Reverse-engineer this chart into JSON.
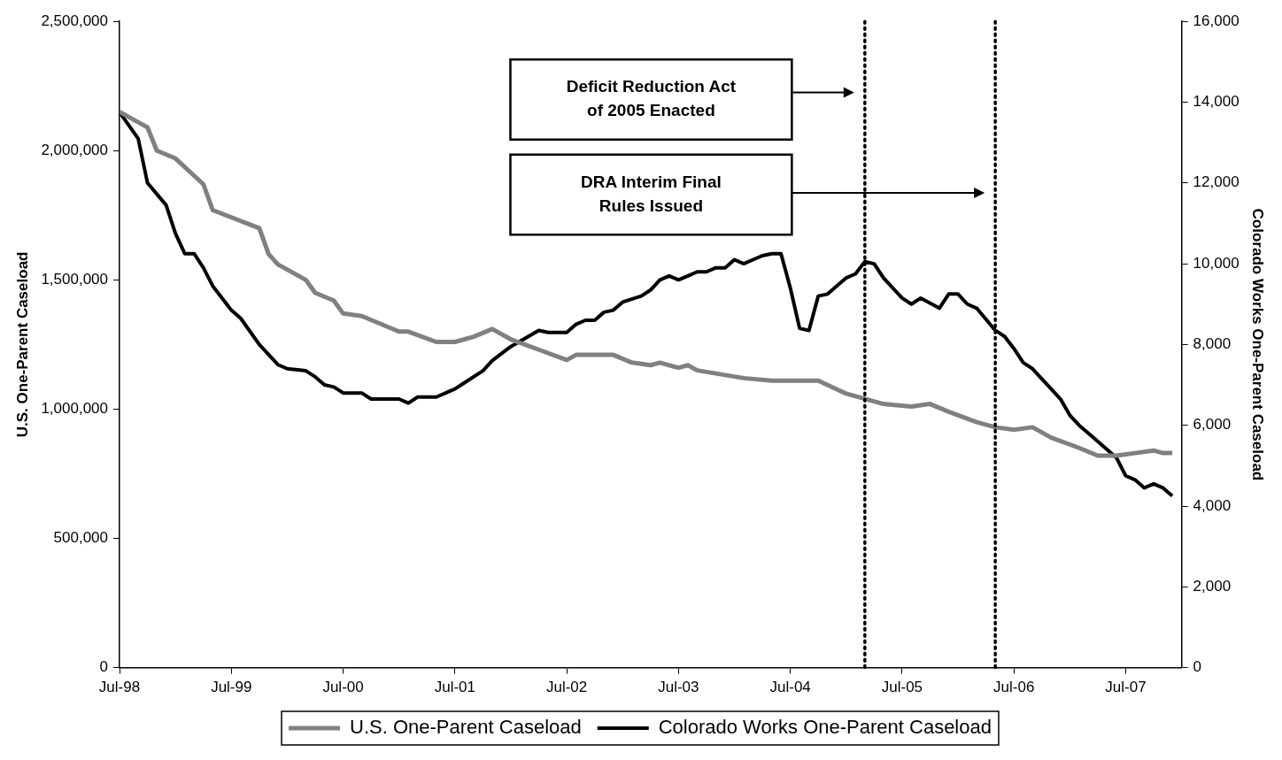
{
  "chart_data": {
    "type": "line",
    "ylabel": "U.S. One-Parent Caseload",
    "y2label": "Colorado Works One-Parent Caseload",
    "xlim": [
      "1998-07",
      "2008-01"
    ],
    "xticks": [
      {
        "value": "1998-07",
        "label": "Jul-98"
      },
      {
        "value": "1999-07",
        "label": "Jul-99"
      },
      {
        "value": "2000-07",
        "label": "Jul-00"
      },
      {
        "value": "2001-07",
        "label": "Jul-01"
      },
      {
        "value": "2002-07",
        "label": "Jul-02"
      },
      {
        "value": "2003-07",
        "label": "Jul-03"
      },
      {
        "value": "2004-07",
        "label": "Jul-04"
      },
      {
        "value": "2005-07",
        "label": "Jul-05"
      },
      {
        "value": "2006-07",
        "label": "Jul-06"
      },
      {
        "value": "2007-07",
        "label": "Jul-07"
      }
    ],
    "ylim": [
      0,
      2500000
    ],
    "yticks": [
      {
        "value": 0,
        "label": "0"
      },
      {
        "value": 500000,
        "label": "500,000"
      },
      {
        "value": 1000000,
        "label": "1,000,000"
      },
      {
        "value": 1500000,
        "label": "1,500,000"
      },
      {
        "value": 2000000,
        "label": "2,000,000"
      },
      {
        "value": 2500000,
        "label": "2,500,000"
      }
    ],
    "y2lim": [
      0,
      16000
    ],
    "y2ticks": [
      {
        "value": 0,
        "label": "0"
      },
      {
        "value": 2000,
        "label": "2,000"
      },
      {
        "value": 4000,
        "label": "4,000"
      },
      {
        "value": 6000,
        "label": "6,000"
      },
      {
        "value": 8000,
        "label": "8,000"
      },
      {
        "value": 10000,
        "label": "10,000"
      },
      {
        "value": 12000,
        "label": "12,000"
      },
      {
        "value": 14000,
        "label": "14,000"
      },
      {
        "value": 16000,
        "label": "16,000"
      }
    ],
    "series": [
      {
        "name": "U.S. One-Parent Caseload",
        "color": "#808080",
        "x": [
          "1998-07",
          "1998-09",
          "1998-10",
          "1998-11",
          "1999-01",
          "1999-04",
          "1999-05",
          "1999-10",
          "1999-11",
          "1999-12",
          "2000-03",
          "2000-04",
          "2000-06",
          "2000-07",
          "2000-09",
          "2001-01",
          "2001-02",
          "2001-05",
          "2001-07",
          "2001-09",
          "2001-11",
          "2002-01",
          "2002-04",
          "2002-07",
          "2002-08",
          "2002-12",
          "2003-02",
          "2003-04",
          "2003-05",
          "2003-07",
          "2003-08",
          "2003-09",
          "2004-02",
          "2004-05",
          "2004-08",
          "2004-10",
          "2005-01",
          "2005-05",
          "2005-08",
          "2005-10",
          "2005-12",
          "2006-03",
          "2006-05",
          "2006-07",
          "2006-09",
          "2006-11",
          "2007-02",
          "2007-04",
          "2007-06",
          "2007-08",
          "2007-10",
          "2007-11",
          "2007-12"
        ],
        "values": [
          2150000,
          2110000,
          2090000,
          2000000,
          1970000,
          1870000,
          1770000,
          1700000,
          1600000,
          1560000,
          1500000,
          1450000,
          1420000,
          1370000,
          1360000,
          1300000,
          1300000,
          1260000,
          1260000,
          1280000,
          1310000,
          1270000,
          1230000,
          1190000,
          1210000,
          1210000,
          1180000,
          1170000,
          1180000,
          1160000,
          1170000,
          1150000,
          1120000,
          1110000,
          1110000,
          1110000,
          1060000,
          1020000,
          1010000,
          1020000,
          990000,
          950000,
          930000,
          920000,
          930000,
          890000,
          850000,
          820000,
          820000,
          830000,
          840000,
          830000,
          830000
        ]
      },
      {
        "name": "Colorado Works One-Parent Caseload",
        "color": "#000000",
        "axis": "y2",
        "x": [
          "1998-07",
          "1998-09",
          "1998-10",
          "1998-12",
          "1999-01",
          "1999-02",
          "1999-03",
          "1999-04",
          "1999-05",
          "1999-07",
          "1999-08",
          "1999-10",
          "1999-12",
          "2000-01",
          "2000-03",
          "2000-04",
          "2000-05",
          "2000-06",
          "2000-07",
          "2000-09",
          "2000-10",
          "2001-01",
          "2001-02",
          "2001-03",
          "2001-05",
          "2001-07",
          "2001-08",
          "2001-10",
          "2001-11",
          "2002-01",
          "2002-04",
          "2002-05",
          "2002-07",
          "2002-08",
          "2002-09",
          "2002-10",
          "2002-11",
          "2002-12",
          "2003-01",
          "2003-03",
          "2003-04",
          "2003-05",
          "2003-06",
          "2003-07",
          "2003-08",
          "2003-09",
          "2003-10",
          "2003-11",
          "2003-12",
          "2004-01",
          "2004-02",
          "2004-03",
          "2004-04",
          "2004-05",
          "2004-06",
          "2004-07",
          "2004-08",
          "2004-09",
          "2004-10",
          "2004-11",
          "2005-01",
          "2005-02",
          "2005-03",
          "2005-04",
          "2005-05",
          "2005-07",
          "2005-08",
          "2005-09",
          "2005-11",
          "2005-12",
          "2006-01",
          "2006-02",
          "2006-03",
          "2006-05",
          "2006-06",
          "2006-07",
          "2006-08",
          "2006-09",
          "2006-11",
          "2006-12",
          "2007-01",
          "2007-02",
          "2007-03",
          "2007-06",
          "2007-07",
          "2007-08",
          "2007-09",
          "2007-10",
          "2007-11",
          "2007-12"
        ],
        "values": [
          13750,
          13100,
          12000,
          11450,
          10750,
          10250,
          10250,
          9900,
          9450,
          8850,
          8650,
          8000,
          7500,
          7400,
          7350,
          7200,
          7000,
          6950,
          6800,
          6800,
          6650,
          6650,
          6550,
          6700,
          6700,
          6900,
          7050,
          7350,
          7600,
          7950,
          8350,
          8300,
          8300,
          8500,
          8600,
          8600,
          8800,
          8850,
          9050,
          9200,
          9350,
          9600,
          9700,
          9600,
          9700,
          9800,
          9800,
          9900,
          9900,
          10100,
          10000,
          10100,
          10200,
          10250,
          10250,
          9400,
          8400,
          8350,
          9200,
          9250,
          9650,
          9750,
          10050,
          10000,
          9650,
          9150,
          9000,
          9150,
          8900,
          9250,
          9250,
          9000,
          8900,
          8350,
          8200,
          7900,
          7550,
          7400,
          6900,
          6650,
          6250,
          6000,
          5800,
          5200,
          4750,
          4650,
          4450,
          4550,
          4450,
          4250
        ]
      }
    ],
    "ref_lines": [
      {
        "axis": "x",
        "value": "2005-03",
        "color": "#000000",
        "line_style": "dotted"
      },
      {
        "axis": "x",
        "value": "2006-05",
        "color": "#000000",
        "line_style": "dotted"
      }
    ],
    "annotations": [
      "Deficit Reduction Act\nof 2005 Enacted",
      "DRA Interim Final\nRules Issued"
    ],
    "marker": "none",
    "grid": false,
    "legend": "bottom"
  }
}
